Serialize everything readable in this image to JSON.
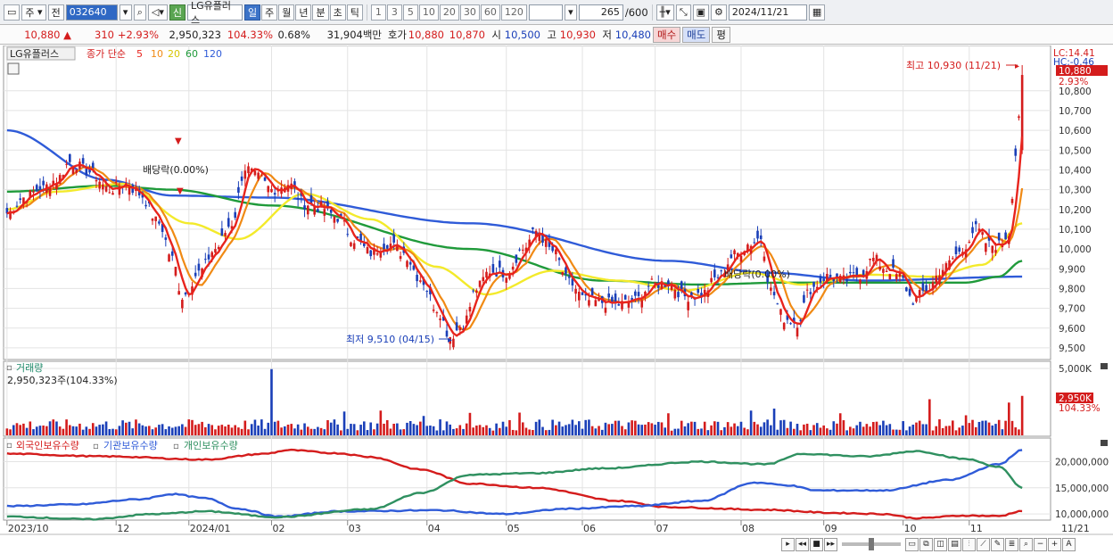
{
  "toolbar": {
    "period_type": "주",
    "prev_label": "전",
    "stock_code": "032640",
    "sin_label": "신",
    "stock_name": "LG유플러스",
    "period_tabs": [
      "일",
      "주",
      "월",
      "년",
      "분",
      "초",
      "틱"
    ],
    "minute_options": [
      "1",
      "3",
      "5",
      "10",
      "20",
      "30",
      "60",
      "120"
    ],
    "count": "265",
    "count_total": "/600",
    "date": "2024/11/21"
  },
  "quote": {
    "price": "10,880",
    "change": "310",
    "change_rate": "+2.93%",
    "volume": "2,950,323",
    "volume_ratio": "104.33%",
    "turnover": "0.68%",
    "amount": "31,904백만",
    "hoga_label": "호가",
    "ask": "10,880",
    "bid": "10,870",
    "open_label": "시",
    "open": "10,500",
    "high_label": "고",
    "high": "10,930",
    "low_label": "저",
    "low": "10,480",
    "buy_label": "매수",
    "sell_label": "매도",
    "eval_label": "평"
  },
  "colors": {
    "up": "#d41c1c",
    "down": "#1a3fb8",
    "ma5": "#e8241d",
    "ma10": "#f08a14",
    "ma20": "#f3ea2b",
    "ma60": "#1f9a3a",
    "ma120": "#2f5bd8",
    "foreign": "#d41c1c",
    "institution": "#2f5bd8",
    "individual": "#2f9060"
  },
  "chart_data": [
    {
      "type": "candlestick",
      "legend": {
        "stock": "LG유플러스",
        "price_label": "종가",
        "ma_label": "단순",
        "ma_periods": [
          "5",
          "10",
          "20",
          "60",
          "120"
        ]
      },
      "ylim": [
        9450,
        11020
      ],
      "y_ticks": [
        "10,800",
        "10,700",
        "10,600",
        "10,500",
        "10,400",
        "10,300",
        "10,200",
        "10,100",
        "10,000",
        "9,900",
        "9,800",
        "9,700",
        "9,600",
        "9,500"
      ],
      "y_tick_values": [
        10800,
        10700,
        10600,
        10500,
        10400,
        10300,
        10200,
        10100,
        10000,
        9900,
        9800,
        9700,
        9600,
        9500
      ],
      "top_right": {
        "lc": "LC:14.41",
        "hc": "HC:-0.46"
      },
      "last_price_label": "10,880",
      "last_change_label": "2.93%",
      "annotations": {
        "high": "최고 10,930 (11/21)",
        "low": "최저 9,510 (04/15)",
        "dividend_1": "배당락(0.00%)",
        "dividend_2": "배당락(0.00%)"
      },
      "close_anchors": [
        [
          0,
          10180
        ],
        [
          5,
          10260
        ],
        [
          10,
          10300
        ],
        [
          15,
          10350
        ],
        [
          19,
          10440
        ],
        [
          25,
          10390
        ],
        [
          31,
          10300
        ],
        [
          36,
          10330
        ],
        [
          40,
          10280
        ],
        [
          46,
          10130
        ],
        [
          50,
          9950
        ],
        [
          53,
          9760
        ],
        [
          58,
          9880
        ],
        [
          63,
          10000
        ],
        [
          68,
          10130
        ],
        [
          72,
          10410
        ],
        [
          76,
          10360
        ],
        [
          80,
          10300
        ],
        [
          85,
          10330
        ],
        [
          90,
          10230
        ],
        [
          95,
          10210
        ],
        [
          100,
          10160
        ],
        [
          105,
          10050
        ],
        [
          110,
          9980
        ],
        [
          115,
          10030
        ],
        [
          120,
          9980
        ],
        [
          125,
          9850
        ],
        [
          130,
          9700
        ],
        [
          134,
          9560
        ],
        [
          138,
          9620
        ],
        [
          142,
          9800
        ],
        [
          146,
          9890
        ],
        [
          151,
          9880
        ],
        [
          156,
          10000
        ],
        [
          160,
          10090
        ],
        [
          165,
          9990
        ],
        [
          170,
          9830
        ],
        [
          175,
          9740
        ],
        [
          180,
          9730
        ],
        [
          185,
          9720
        ],
        [
          190,
          9740
        ],
        [
          195,
          9820
        ],
        [
          200,
          9830
        ],
        [
          205,
          9760
        ],
        [
          210,
          9770
        ],
        [
          215,
          9860
        ],
        [
          220,
          9970
        ],
        [
          225,
          10030
        ],
        [
          228,
          10060
        ],
        [
          231,
          9790
        ],
        [
          235,
          9650
        ],
        [
          239,
          9630
        ],
        [
          243,
          9800
        ],
        [
          248,
          9860
        ],
        [
          253,
          9840
        ],
        [
          258,
          9870
        ],
        [
          262,
          9950
        ],
        [
          266,
          9900
        ],
        [
          270,
          9860
        ],
        [
          274,
          9740
        ],
        [
          278,
          9790
        ],
        [
          283,
          9900
        ],
        [
          288,
          9980
        ],
        [
          293,
          10100
        ],
        [
          297,
          10020
        ],
        [
          300,
          10020
        ],
        [
          303,
          10080
        ],
        [
          305,
          10480
        ],
        [
          307,
          10880
        ]
      ],
      "moving_averages": [
        {
          "name": "120",
          "anchors": [
            [
              0,
              10600
            ],
            [
              30,
              10350
            ],
            [
              50,
              10270
            ],
            [
              80,
              10260
            ],
            [
              140,
              10130
            ],
            [
              200,
              9940
            ],
            [
              230,
              9880
            ],
            [
              260,
              9840
            ],
            [
              307,
              9860
            ]
          ]
        },
        {
          "name": "60",
          "anchors": [
            [
              0,
              10290
            ],
            [
              30,
              10320
            ],
            [
              50,
              10300
            ],
            [
              80,
              10220
            ],
            [
              140,
              10000
            ],
            [
              180,
              9840
            ],
            [
              210,
              9820
            ],
            [
              235,
              9830
            ],
            [
              260,
              9830
            ],
            [
              290,
              9830
            ],
            [
              300,
              9860
            ],
            [
              307,
              9940
            ]
          ]
        },
        {
          "name": "20",
          "anchors": [
            [
              0,
              10200
            ],
            [
              15,
              10290
            ],
            [
              35,
              10330
            ],
            [
              55,
              10130
            ],
            [
              70,
              10050
            ],
            [
              90,
              10280
            ],
            [
              110,
              10150
            ],
            [
              130,
              9910
            ],
            [
              145,
              9770
            ],
            [
              165,
              9890
            ],
            [
              185,
              9840
            ],
            [
              205,
              9790
            ],
            [
              225,
              9880
            ],
            [
              240,
              9820
            ],
            [
              260,
              9870
            ],
            [
              280,
              9860
            ],
            [
              295,
              9920
            ],
            [
              307,
              10130
            ]
          ]
        }
      ]
    },
    {
      "type": "bar",
      "title": "거래량",
      "current": "2,950,323주(104.33%)",
      "ylim": [
        0,
        5000000
      ],
      "y_ticks": [
        "5,000K"
      ],
      "y_tick_values": [
        5000000
      ],
      "last_label": "2,950K",
      "last_ratio": "104.33%",
      "spikes": [
        [
          80,
          4950000
        ],
        [
          102,
          1780000
        ],
        [
          113,
          1850000
        ],
        [
          126,
          1450000
        ],
        [
          140,
          1680000
        ],
        [
          155,
          1700000
        ],
        [
          200,
          1650000
        ],
        [
          225,
          1850000
        ],
        [
          232,
          2000000
        ],
        [
          252,
          1650000
        ],
        [
          279,
          2700000
        ],
        [
          290,
          1500000
        ],
        [
          303,
          2450000
        ],
        [
          307,
          2950000
        ]
      ],
      "base_level": 1000000
    },
    {
      "type": "line",
      "series_labels": [
        "외국인보유수량",
        "기관보유수량",
        "개인보유수량"
      ],
      "ylim": [
        9000000,
        24000000
      ],
      "y_ticks": [
        "20,000,000",
        "15,000,000",
        "10,000,000"
      ],
      "y_tick_values": [
        20000000,
        15000000,
        10000000
      ],
      "series": [
        {
          "name": "외국인보유수량",
          "anchors": [
            [
              0,
              21500000
            ],
            [
              30,
              21000000
            ],
            [
              60,
              20400000
            ],
            [
              78,
              21500000
            ],
            [
              85,
              22200000
            ],
            [
              100,
              21600000
            ],
            [
              110,
              20900000
            ],
            [
              125,
              18500000
            ],
            [
              140,
              15800000
            ],
            [
              160,
              15000000
            ],
            [
              185,
              12500000
            ],
            [
              200,
              11300000
            ],
            [
              230,
              10800000
            ],
            [
              250,
              10200000
            ],
            [
              265,
              10000000
            ],
            [
              275,
              9200000
            ],
            [
              290,
              9700000
            ],
            [
              300,
              9600000
            ],
            [
              307,
              10600000
            ]
          ]
        },
        {
          "name": "기관보유수량",
          "anchors": [
            [
              0,
              11500000
            ],
            [
              20,
              11800000
            ],
            [
              40,
              12800000
            ],
            [
              50,
              13800000
            ],
            [
              60,
              13000000
            ],
            [
              70,
              11000000
            ],
            [
              82,
              9500000
            ],
            [
              100,
              10500000
            ],
            [
              130,
              10700000
            ],
            [
              150,
              10000000
            ],
            [
              170,
              11000000
            ],
            [
              190,
              11500000
            ],
            [
              210,
              12500000
            ],
            [
              226,
              16000000
            ],
            [
              236,
              15500000
            ],
            [
              245,
              14500000
            ],
            [
              265,
              14500000
            ],
            [
              285,
              16500000
            ],
            [
              300,
              19500000
            ],
            [
              307,
              22200000
            ]
          ]
        },
        {
          "name": "개인보유수량",
          "anchors": [
            [
              0,
              9500000
            ],
            [
              25,
              9000000
            ],
            [
              45,
              10000000
            ],
            [
              60,
              10500000
            ],
            [
              82,
              9400000
            ],
            [
              110,
              10900000
            ],
            [
              125,
              14000000
            ],
            [
              140,
              17500000
            ],
            [
              160,
              17800000
            ],
            [
              180,
              18700000
            ],
            [
              210,
              20000000
            ],
            [
              230,
              19500000
            ],
            [
              240,
              21500000
            ],
            [
              260,
              21000000
            ],
            [
              275,
              22000000
            ],
            [
              290,
              20500000
            ],
            [
              300,
              19000000
            ],
            [
              307,
              15000000
            ]
          ]
        }
      ]
    }
  ],
  "x_axis": {
    "labels": [
      "2023/10",
      "12",
      "2024/01",
      "02",
      "03",
      "04",
      "05",
      "06",
      "07",
      "08",
      "09",
      "10",
      "11"
    ],
    "label_index": [
      0,
      33,
      55,
      80,
      103,
      127,
      151,
      174,
      196,
      222,
      247,
      271,
      291
    ],
    "last_date": "11/21"
  }
}
